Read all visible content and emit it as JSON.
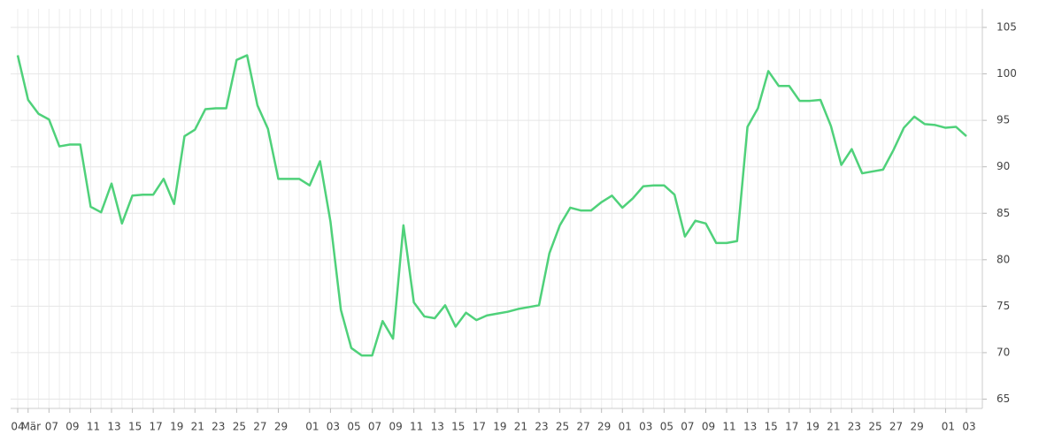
{
  "chart_data": {
    "type": "line",
    "categories": [
      "04",
      "Mär",
      null,
      "07",
      null,
      "09",
      null,
      "11",
      null,
      "13",
      null,
      "15",
      null,
      "17",
      null,
      "19",
      null,
      "21",
      null,
      "23",
      null,
      "25",
      null,
      "27",
      null,
      "29",
      null,
      null,
      "01",
      null,
      "03",
      null,
      "05",
      null,
      "07",
      null,
      "09",
      null,
      "11",
      null,
      "13",
      null,
      "15",
      null,
      "17",
      null,
      "19",
      null,
      "21",
      null,
      "23",
      null,
      "25",
      null,
      "27",
      null,
      "29",
      null,
      "01",
      null,
      "03",
      null,
      "05",
      null,
      "07",
      null,
      "09",
      null,
      "11",
      null,
      "13",
      null,
      "15",
      null,
      "17",
      null,
      "19",
      null,
      "21",
      null,
      "23",
      null,
      "25",
      null,
      "27",
      null,
      "29",
      null,
      null,
      "01",
      null,
      "03"
    ],
    "series": [
      {
        "color": "#4fd17a",
        "values": [
          102.0,
          97.2,
          95.7,
          95.1,
          92.2,
          92.4,
          92.4,
          85.7,
          85.1,
          88.2,
          83.9,
          86.9,
          87.0,
          87.0,
          88.7,
          86.0,
          93.3,
          94.0,
          96.2,
          96.3,
          96.3,
          101.5,
          102.0,
          96.6,
          94.1,
          88.7,
          88.7,
          88.7,
          88.0,
          90.6,
          84.1,
          74.6,
          70.5,
          69.7,
          69.7,
          73.4,
          71.5,
          83.7,
          75.4,
          73.9,
          73.7,
          75.1,
          72.8,
          74.3,
          73.5,
          74.0,
          74.2,
          74.4,
          74.7,
          74.9,
          75.1,
          80.7,
          83.7,
          85.6,
          85.3,
          85.3,
          86.2,
          86.9,
          85.6,
          86.6,
          87.9,
          88.0,
          88.0,
          87.0,
          82.5,
          84.2,
          83.9,
          81.8,
          81.8,
          82.0,
          94.3,
          96.3,
          100.3,
          98.7,
          98.7,
          97.1,
          97.1,
          97.2,
          94.4,
          90.2,
          91.9,
          89.3,
          89.5,
          89.7,
          91.8,
          94.2,
          95.4,
          94.6,
          94.5,
          94.2,
          94.3,
          93.3
        ]
      }
    ],
    "ylim": [
      64,
      107
    ],
    "yticks": [
      65,
      70,
      75,
      80,
      85,
      90,
      95,
      100,
      105
    ],
    "grid": true
  }
}
